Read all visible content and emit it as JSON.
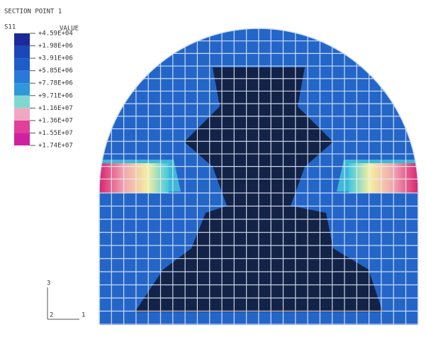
{
  "header": {
    "title": "SECTION POINT 1"
  },
  "legend": {
    "variable": "S11",
    "column": "VALUE",
    "labels": [
      "+4.59E+04",
      "+1.98E+06",
      "+3.91E+06",
      "+5.85E+06",
      "+7.78E+06",
      "+9.71E+06",
      "+1.16E+07",
      "+1.36E+07",
      "+1.55E+07",
      "+1.74E+07"
    ]
  },
  "triad": {
    "axes": [
      "3",
      "2",
      "1"
    ]
  }
}
